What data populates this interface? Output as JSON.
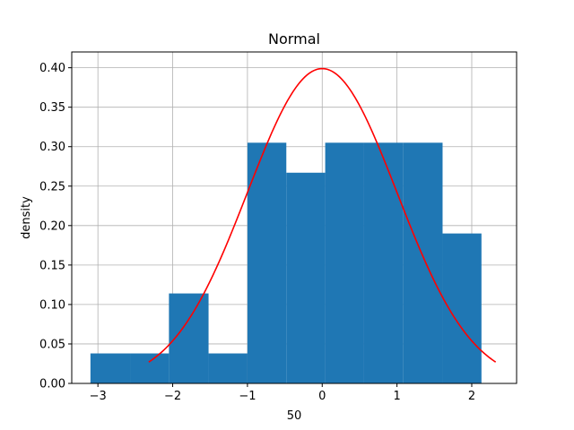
{
  "chart_data": {
    "type": "bar",
    "title": "Normal",
    "xlabel": "50",
    "ylabel": "density",
    "xlim": [
      -3.35,
      2.6
    ],
    "ylim": [
      0,
      0.42
    ],
    "xticks": [
      -3,
      -2,
      -1,
      0,
      1,
      2
    ],
    "yticks": [
      0.0,
      0.05,
      0.1,
      0.15,
      0.2,
      0.25,
      0.3,
      0.35,
      0.4
    ],
    "grid": true,
    "colors": {
      "bars": "#1f77b4",
      "curve": "#ff0000",
      "grid": "#b0b0b0"
    },
    "histogram": {
      "bins": [
        {
          "x0": -3.1,
          "x1": -2.57,
          "value": 0.038
        },
        {
          "x0": -2.57,
          "x1": -2.05,
          "value": 0.038
        },
        {
          "x0": -2.05,
          "x1": -1.52,
          "value": 0.114
        },
        {
          "x0": -1.52,
          "x1": -1.0,
          "value": 0.038
        },
        {
          "x0": -1.0,
          "x1": -0.48,
          "value": 0.305
        },
        {
          "x0": -0.48,
          "x1": 0.04,
          "value": 0.267
        },
        {
          "x0": 0.04,
          "x1": 0.56,
          "value": 0.305
        },
        {
          "x0": 0.56,
          "x1": 1.08,
          "value": 0.305
        },
        {
          "x0": 1.08,
          "x1": 1.61,
          "value": 0.305
        },
        {
          "x0": 1.61,
          "x1": 2.13,
          "value": 0.19
        }
      ]
    },
    "curve": {
      "name": "normal pdf",
      "x_range": [
        -2.32,
        2.32
      ],
      "mean": 0,
      "std": 1
    }
  }
}
